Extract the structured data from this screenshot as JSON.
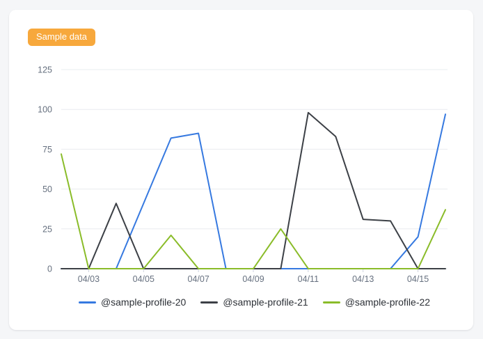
{
  "badge": {
    "label": "Sample data",
    "background_color": "#f7a83c",
    "text_color": "#ffffff"
  },
  "chart_data": {
    "type": "line",
    "x": [
      "04/02",
      "04/03",
      "04/04",
      "04/05",
      "04/06",
      "04/07",
      "04/08",
      "04/09",
      "04/10",
      "04/11",
      "04/12",
      "04/13",
      "04/14",
      "04/15",
      "04/16"
    ],
    "x_tick_labels": [
      "04/03",
      "04/05",
      "04/07",
      "04/09",
      "04/11",
      "04/13",
      "04/15"
    ],
    "x_tick_indices": [
      1,
      3,
      5,
      7,
      9,
      11,
      13
    ],
    "y_ticks": [
      0,
      25,
      50,
      75,
      100,
      125
    ],
    "ylim": [
      0,
      125
    ],
    "grid": "horizontal",
    "legend_position": "bottom",
    "series": [
      {
        "name": "@sample-profile-20",
        "color": "#3679e0",
        "values": [
          0,
          0,
          0,
          41,
          82,
          85,
          0,
          0,
          0,
          0,
          0,
          0,
          0,
          20,
          97
        ]
      },
      {
        "name": "@sample-profile-21",
        "color": "#3c4046",
        "values": [
          0,
          0,
          41,
          0,
          0,
          0,
          0,
          0,
          0,
          98,
          83,
          31,
          30,
          0,
          0
        ]
      },
      {
        "name": "@sample-profile-22",
        "color": "#8abc29",
        "values": [
          72,
          0,
          0,
          0,
          21,
          0,
          0,
          0,
          25,
          0,
          0,
          0,
          0,
          0,
          37
        ]
      }
    ],
    "colors": {
      "gridline": "#e9ecef",
      "tick_mark": "#ccd2db",
      "axis_text": "#66707f",
      "legend_text": "#2c3036"
    }
  }
}
